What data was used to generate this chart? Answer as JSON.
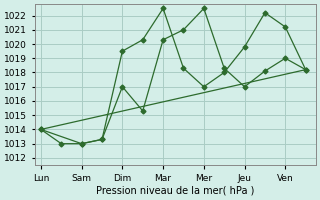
{
  "xlabel": "Pression niveau de la mer( hPa )",
  "background_color": "#d4eee8",
  "grid_color": "#aaccc4",
  "line_color": "#2d6b2d",
  "ylim": [
    1011.5,
    1022.8
  ],
  "day_labels": [
    "Lun",
    "Sam",
    "Dim",
    "Mar",
    "Mer",
    "Jeu",
    "Ven"
  ],
  "day_positions": [
    0,
    2,
    4,
    6,
    8,
    10,
    12
  ],
  "xlim": [
    -0.3,
    13.5
  ],
  "line_a_x": [
    0,
    1,
    2,
    3,
    4,
    5,
    6,
    7,
    8,
    9,
    10,
    11,
    12,
    13
  ],
  "line_a_y": [
    1014,
    1013,
    1013,
    1013.3,
    1019.5,
    1020.3,
    1022.5,
    1018.3,
    1017.0,
    1018.0,
    1019.8,
    1022.2,
    1021.2,
    1018.2
  ],
  "line_b_x": [
    0,
    2,
    3,
    4,
    5,
    6,
    7,
    8,
    9,
    10,
    11,
    12,
    13
  ],
  "line_b_y": [
    1014,
    1013,
    1013.3,
    1017,
    1015.3,
    1020.3,
    1021.0,
    1022.5,
    1018.3,
    1017.0,
    1018.1,
    1019.0,
    1018.2
  ],
  "trend_x": [
    0,
    13
  ],
  "trend_y": [
    1014.0,
    1018.2
  ]
}
